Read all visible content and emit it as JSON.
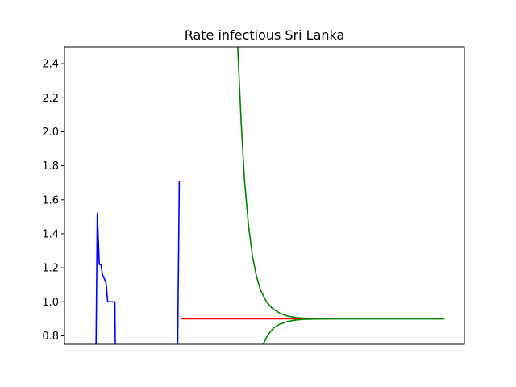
{
  "chart_data": {
    "type": "line",
    "title": "Rate infectious Sri Lanka",
    "xlabel": "",
    "ylabel": "",
    "xlim": [
      0,
      100
    ],
    "ylim": [
      0.75,
      2.5
    ],
    "x_ticks_shown": false,
    "grid": false,
    "legend": "none",
    "yticks": [
      0.8,
      1.0,
      1.2,
      1.4,
      1.6,
      1.8,
      2.0,
      2.2,
      2.4
    ],
    "ytick_labels": [
      "0.8",
      "1.0",
      "1.2",
      "1.4",
      "1.6",
      "1.8",
      "2.0",
      "2.2",
      "2.4"
    ],
    "series": [
      {
        "color": "#0000ff",
        "segments": [
          [
            [
              7.9,
              0.75
            ],
            [
              8.2,
              1.52
            ],
            [
              8.7,
              1.22
            ],
            [
              9.1,
              1.22
            ],
            [
              9.5,
              1.16
            ],
            [
              9.9,
              1.14
            ],
            [
              10.4,
              1.11
            ],
            [
              10.8,
              1.0
            ],
            [
              12.6,
              1.0
            ],
            [
              12.7,
              0.75
            ]
          ],
          [
            [
              28.3,
              0.75
            ],
            [
              28.7,
              1.71
            ]
          ]
        ]
      },
      {
        "color": "#ff0000",
        "segments": [
          [
            [
              29.1,
              0.9
            ],
            [
              67.0,
              0.9
            ]
          ]
        ]
      },
      {
        "color": "#008000",
        "segments": [
          [
            [
              43.3,
              2.5
            ],
            [
              44.2,
              2.05
            ],
            [
              45.0,
              1.72
            ],
            [
              46.0,
              1.45
            ],
            [
              47.0,
              1.27
            ],
            [
              48.0,
              1.15
            ],
            [
              49.0,
              1.07
            ],
            [
              50.5,
              1.0
            ],
            [
              52.0,
              0.96
            ],
            [
              54.0,
              0.93
            ],
            [
              56.0,
              0.915
            ],
            [
              58.0,
              0.907
            ],
            [
              60.0,
              0.903
            ],
            [
              65.0,
              0.9
            ],
            [
              95.0,
              0.9
            ]
          ],
          [
            [
              49.7,
              0.75
            ],
            [
              50.5,
              0.79
            ],
            [
              51.5,
              0.825
            ],
            [
              52.5,
              0.85
            ],
            [
              54.0,
              0.87
            ],
            [
              56.0,
              0.885
            ],
            [
              58.0,
              0.893
            ],
            [
              60.0,
              0.897
            ],
            [
              65.0,
              0.9
            ],
            [
              95.0,
              0.9
            ]
          ]
        ]
      }
    ]
  }
}
